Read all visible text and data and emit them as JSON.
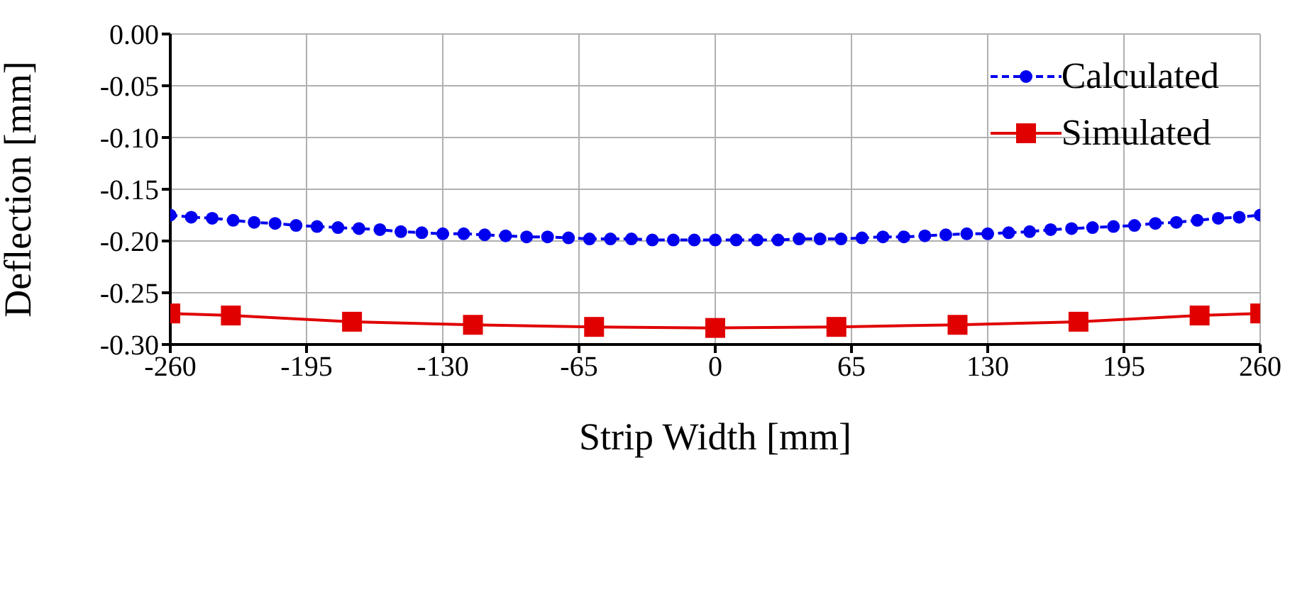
{
  "chart_data": {
    "type": "line",
    "xlabel": "Strip Width [mm]",
    "ylabel": "Deflection [mm]",
    "xlim": [
      -260,
      260
    ],
    "xticks": [
      -260,
      -195,
      -130,
      -65,
      0,
      65,
      130,
      195,
      260
    ],
    "ylim": [
      -0.3,
      0
    ],
    "yticks": [
      {
        "value": -0.3,
        "label": "-0.30"
      },
      {
        "value": -0.25,
        "label": "-0.25"
      },
      {
        "value": -0.2,
        "label": "-0.20"
      },
      {
        "value": -0.15,
        "label": "-0.15"
      },
      {
        "value": -0.1,
        "label": "-0.10"
      },
      {
        "value": -0.05,
        "label": "-0.05"
      },
      {
        "value": 0,
        "label": "0.00"
      }
    ],
    "grid": true,
    "legend": "top right",
    "series": [
      {
        "name": "Calculated",
        "color": "#0000ee",
        "marker": "circle",
        "line_style": "dashed",
        "x": [
          -260,
          -250,
          -240,
          -230,
          -220,
          -210,
          -200,
          -190,
          -180,
          -170,
          -160,
          -150,
          -140,
          -130,
          -120,
          -110,
          -100,
          -90,
          -80,
          -70,
          -60,
          -50,
          -40,
          -30,
          -20,
          -10,
          0,
          10,
          20,
          30,
          40,
          50,
          60,
          70,
          80,
          90,
          100,
          110,
          120,
          130,
          140,
          150,
          160,
          170,
          180,
          190,
          200,
          210,
          220,
          230,
          240,
          250,
          260
        ],
        "values": [
          -0.175,
          -0.177,
          -0.178,
          -0.18,
          -0.182,
          -0.183,
          -0.185,
          -0.186,
          -0.187,
          -0.188,
          -0.189,
          -0.191,
          -0.192,
          -0.193,
          -0.193,
          -0.194,
          -0.195,
          -0.196,
          -0.196,
          -0.197,
          -0.198,
          -0.198,
          -0.198,
          -0.199,
          -0.199,
          -0.199,
          -0.199,
          -0.199,
          -0.199,
          -0.199,
          -0.198,
          -0.198,
          -0.198,
          -0.197,
          -0.196,
          -0.196,
          -0.195,
          -0.194,
          -0.193,
          -0.193,
          -0.192,
          -0.191,
          -0.189,
          -0.188,
          -0.187,
          -0.186,
          -0.185,
          -0.183,
          -0.182,
          -0.18,
          -0.178,
          -0.177,
          -0.175
        ]
      },
      {
        "name": "Simulated",
        "color": "#e00000",
        "marker": "square",
        "line_style": "solid",
        "x": [
          -260,
          -231.1,
          -173.3,
          -115.6,
          -57.8,
          0,
          57.8,
          115.6,
          173.3,
          231.1,
          260
        ],
        "values": [
          -0.27,
          -0.272,
          -0.278,
          -0.281,
          -0.283,
          -0.284,
          -0.283,
          -0.281,
          -0.278,
          -0.272,
          -0.27
        ]
      }
    ]
  }
}
